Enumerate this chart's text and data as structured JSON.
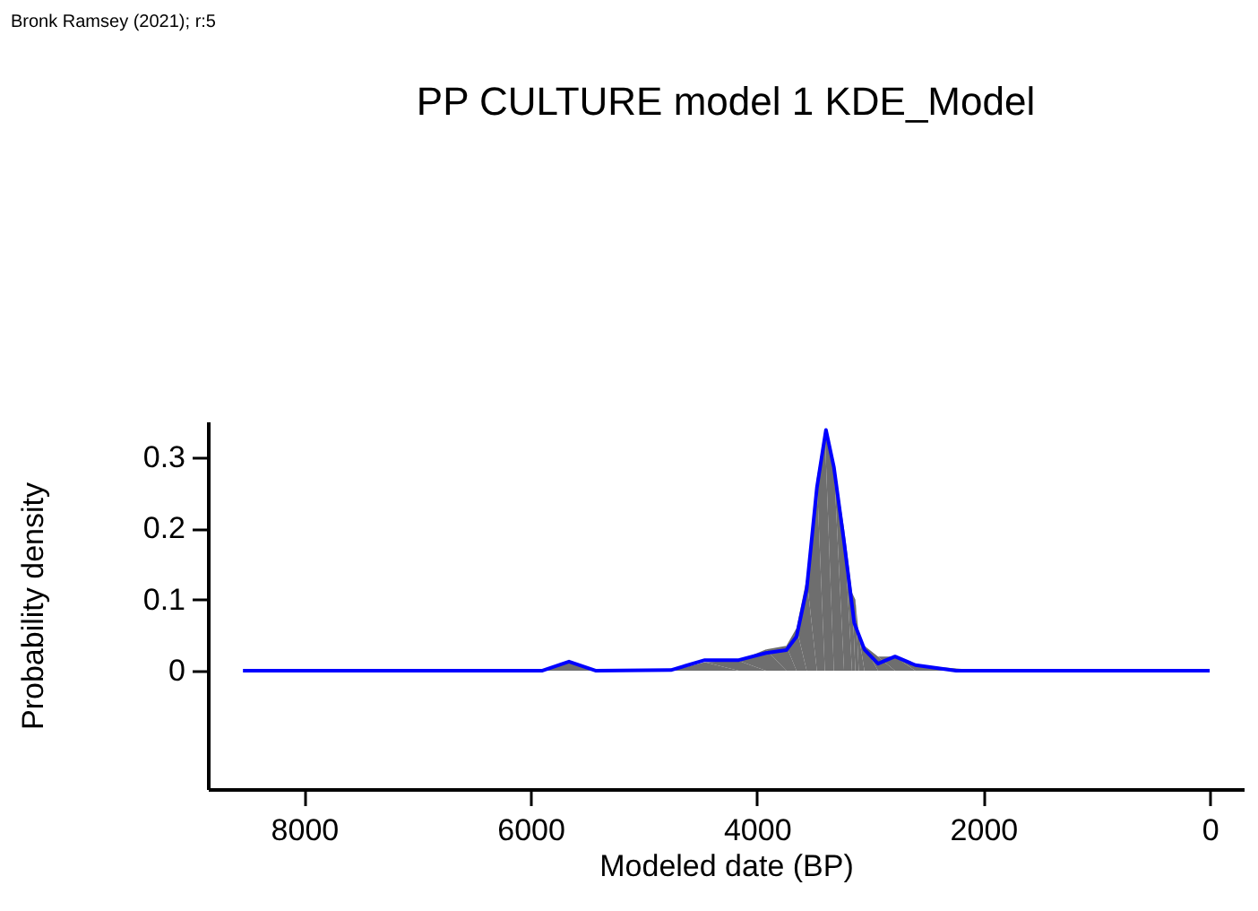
{
  "chart_data": {
    "type": "line",
    "title": "PP CULTURE model 1 KDE_Model",
    "xlabel": "Modeled date (BP)",
    "ylabel": "Probability density",
    "annotations": [
      "Bronk Ramsey (2021); r:5"
    ],
    "xlim": [
      8850,
      -300
    ],
    "xticks": [
      8000,
      6000,
      4000,
      2000,
      0
    ],
    "ylim": [
      -0.166,
      0.35
    ],
    "yticks": [
      0,
      0.1,
      0.2,
      0.3
    ],
    "grid": false,
    "series": [
      {
        "type": "area",
        "color": "#6e6e6e",
        "x": [
          5900,
          5660,
          5420,
          4760,
          4460,
          4160,
          3920,
          3740,
          3650,
          3560,
          3470,
          3400,
          3320,
          3230,
          3160,
          3130,
          3100,
          3050,
          2930,
          2780,
          2600,
          2000
        ],
        "values": [
          0,
          0.012,
          0,
          0,
          0.012,
          0.014,
          0.03,
          0.035,
          0.06,
          0.13,
          0.27,
          0.335,
          0.29,
          0.2,
          0.11,
          0.1,
          0.05,
          0.035,
          0.02,
          0.02,
          0.008,
          0
        ]
      },
      {
        "color": "#0000ff",
        "x": [
          8540,
          5900,
          5660,
          5420,
          4760,
          4460,
          4160,
          3920,
          3740,
          3650,
          3560,
          3470,
          3390,
          3320,
          3230,
          3140,
          3050,
          2930,
          2780,
          2600,
          2240,
          0
        ],
        "values": [
          0,
          0,
          0.013,
          0,
          0.001,
          0.015,
          0.015,
          0.025,
          0.029,
          0.048,
          0.115,
          0.257,
          0.338,
          0.286,
          0.181,
          0.067,
          0.03,
          0.01,
          0.02,
          0.008,
          0,
          0
        ]
      }
    ]
  }
}
